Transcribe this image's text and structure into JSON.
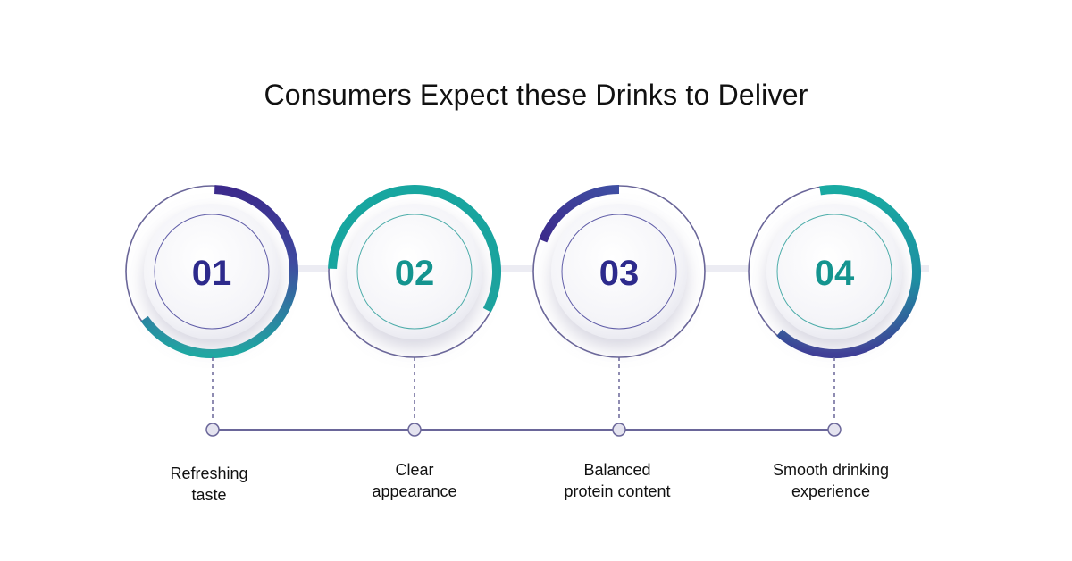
{
  "title": "Consumers Expect these Drinks to Deliver",
  "colors": {
    "purple": "#3c2a8c",
    "teal": "#1aa7a0",
    "connector": "#6a6699",
    "dot_fill": "#e4e3ef"
  },
  "steps": [
    {
      "number": "01",
      "label_lines": [
        "Refreshing",
        "taste"
      ],
      "number_color": "#2d2a8c"
    },
    {
      "number": "02",
      "label_lines": [
        "Clear",
        "appearance"
      ],
      "number_color": "#14948f"
    },
    {
      "number": "03",
      "label_lines": [
        "Balanced",
        "protein content"
      ],
      "number_color": "#2d2a8c"
    },
    {
      "number": "04",
      "label_lines": [
        "Smooth drinking",
        "experience"
      ],
      "number_color": "#14948f"
    }
  ]
}
